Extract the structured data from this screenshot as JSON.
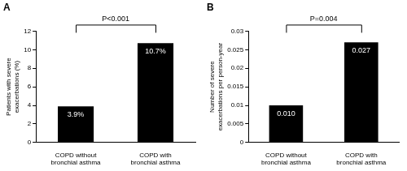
{
  "chart_data": [
    {
      "type": "bar",
      "title": "A",
      "ylabel": "Patients with severe exacerbations (%)",
      "categories": [
        "COPD without bronchial asthma",
        "COPD with bronchial asthma"
      ],
      "values": [
        3.9,
        10.7
      ],
      "value_labels": [
        "3.9%",
        "10.7%"
      ],
      "color": "#000000",
      "data_labels": true,
      "ylim": [
        0,
        12
      ],
      "yticks": [
        0,
        2,
        4,
        6,
        8,
        10,
        12
      ],
      "grid": false,
      "annotations": [
        {
          "text": "P<0.001"
        }
      ]
    },
    {
      "type": "bar",
      "title": "B",
      "ylabel": "Number of severe exacerbations per person-year",
      "categories": [
        "COPD without bronchial asthma",
        "COPD with bronchial asthma"
      ],
      "values": [
        0.01,
        0.027
      ],
      "value_labels": [
        "0.010",
        "0.027"
      ],
      "color": "#000000",
      "data_labels": true,
      "ylim": [
        0,
        0.03
      ],
      "yticks": [
        0,
        0.005,
        0.01,
        0.015,
        0.02,
        0.025,
        0.03
      ],
      "grid": false,
      "annotations": [
        {
          "text": "P=0.004"
        }
      ]
    }
  ]
}
